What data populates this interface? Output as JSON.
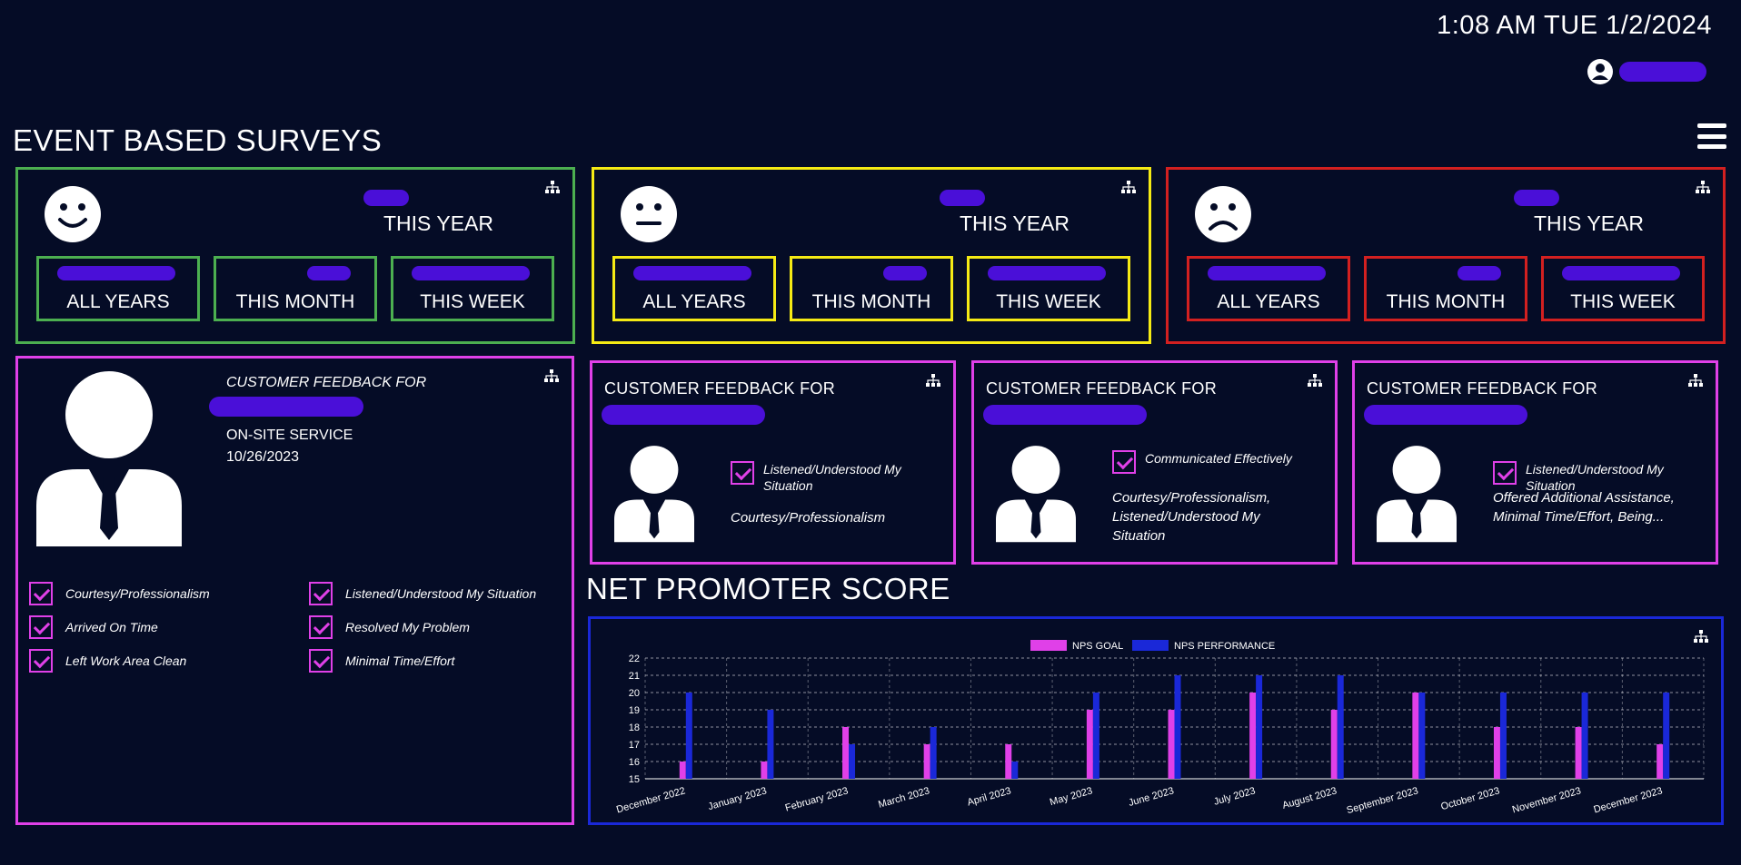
{
  "header": {
    "datetime": "1:08 AM TUE 1/2/2024"
  },
  "event_surveys": {
    "title": "EVENT BASED SURVEYS",
    "panels": [
      {
        "mood": "happy",
        "color": "#4caf50",
        "year_label": "THIS YEAR",
        "boxes": [
          "ALL YEARS",
          "THIS MONTH",
          "THIS WEEK"
        ]
      },
      {
        "mood": "neutral",
        "color": "#f5ea14",
        "year_label": "THIS YEAR",
        "boxes": [
          "ALL YEARS",
          "THIS MONTH",
          "THIS WEEK"
        ]
      },
      {
        "mood": "sad",
        "color": "#d32020",
        "year_label": "THIS YEAR",
        "boxes": [
          "ALL YEARS",
          "THIS MONTH",
          "THIS WEEK"
        ]
      }
    ]
  },
  "feedback_main": {
    "heading": "CUSTOMER FEEDBACK FOR",
    "service": "ON-SITE SERVICE",
    "date": "10/26/2023",
    "checks_left": [
      "Courtesy/Professionalism",
      "Arrived On Time",
      "Left Work Area Clean"
    ],
    "checks_right": [
      "Listened/Understood My Situation",
      "Resolved My Problem",
      "Minimal Time/Effort"
    ]
  },
  "feedback_cards": [
    {
      "heading": "CUSTOMER FEEDBACK FOR",
      "checked": "Listened/Understood My Situation",
      "other": "Courtesy/Professionalism"
    },
    {
      "heading": "CUSTOMER FEEDBACK FOR",
      "checked": "Communicated Effectively",
      "other": "Courtesy/Professionalism, Listened/Understood My Situation"
    },
    {
      "heading": "CUSTOMER FEEDBACK FOR",
      "checked": "Listened/Understood My Situation",
      "other": "Offered Additional Assistance, Minimal Time/Effort, Being..."
    }
  ],
  "nps": {
    "title": "NET PROMOTER SCORE"
  },
  "colors": {
    "background": "#050c26",
    "goal": "#e040e8",
    "performance": "#1a28d8",
    "nps_border": "#1a28d8",
    "feedback_border": "#e040e8",
    "redaction": "#4a0fd8"
  },
  "chart_data": {
    "type": "bar",
    "categories": [
      "December 2022",
      "January 2023",
      "February 2023",
      "March 2023",
      "April 2023",
      "May 2023",
      "June 2023",
      "July 2023",
      "August 2023",
      "September 2023",
      "October 2023",
      "November 2023",
      "December 2023"
    ],
    "series": [
      {
        "name": "NPS GOAL",
        "values": [
          16,
          16,
          18,
          17,
          17,
          19,
          19,
          20,
          19,
          20,
          18,
          18,
          17
        ]
      },
      {
        "name": "NPS PERFORMANCE",
        "values": [
          20,
          19,
          17,
          18,
          16,
          20,
          21,
          21,
          21,
          20,
          20,
          20,
          20
        ]
      }
    ],
    "ylim": [
      15,
      22
    ],
    "yticks": [
      15,
      16,
      17,
      18,
      19,
      20,
      21,
      22
    ],
    "legend": "top-center",
    "grid": true
  }
}
